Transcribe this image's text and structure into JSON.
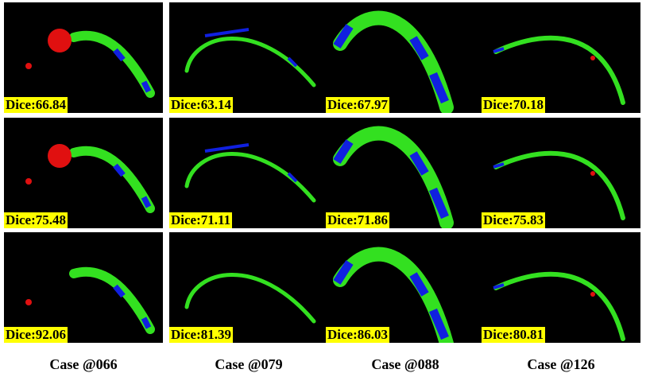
{
  "panels": [
    [
      "Dice:66.84",
      "Dice:63.14",
      "Dice:67.97",
      "Dice:70.18"
    ],
    [
      "Dice:75.48",
      "Dice:71.11",
      "Dice:71.86",
      "Dice:75.83"
    ],
    [
      "Dice:92.06",
      "Dice:81.39",
      "Dice:86.03",
      "Dice:80.81"
    ]
  ],
  "captions": [
    "Case @066",
    "Case @079",
    "Case @088",
    "Case @126"
  ]
}
